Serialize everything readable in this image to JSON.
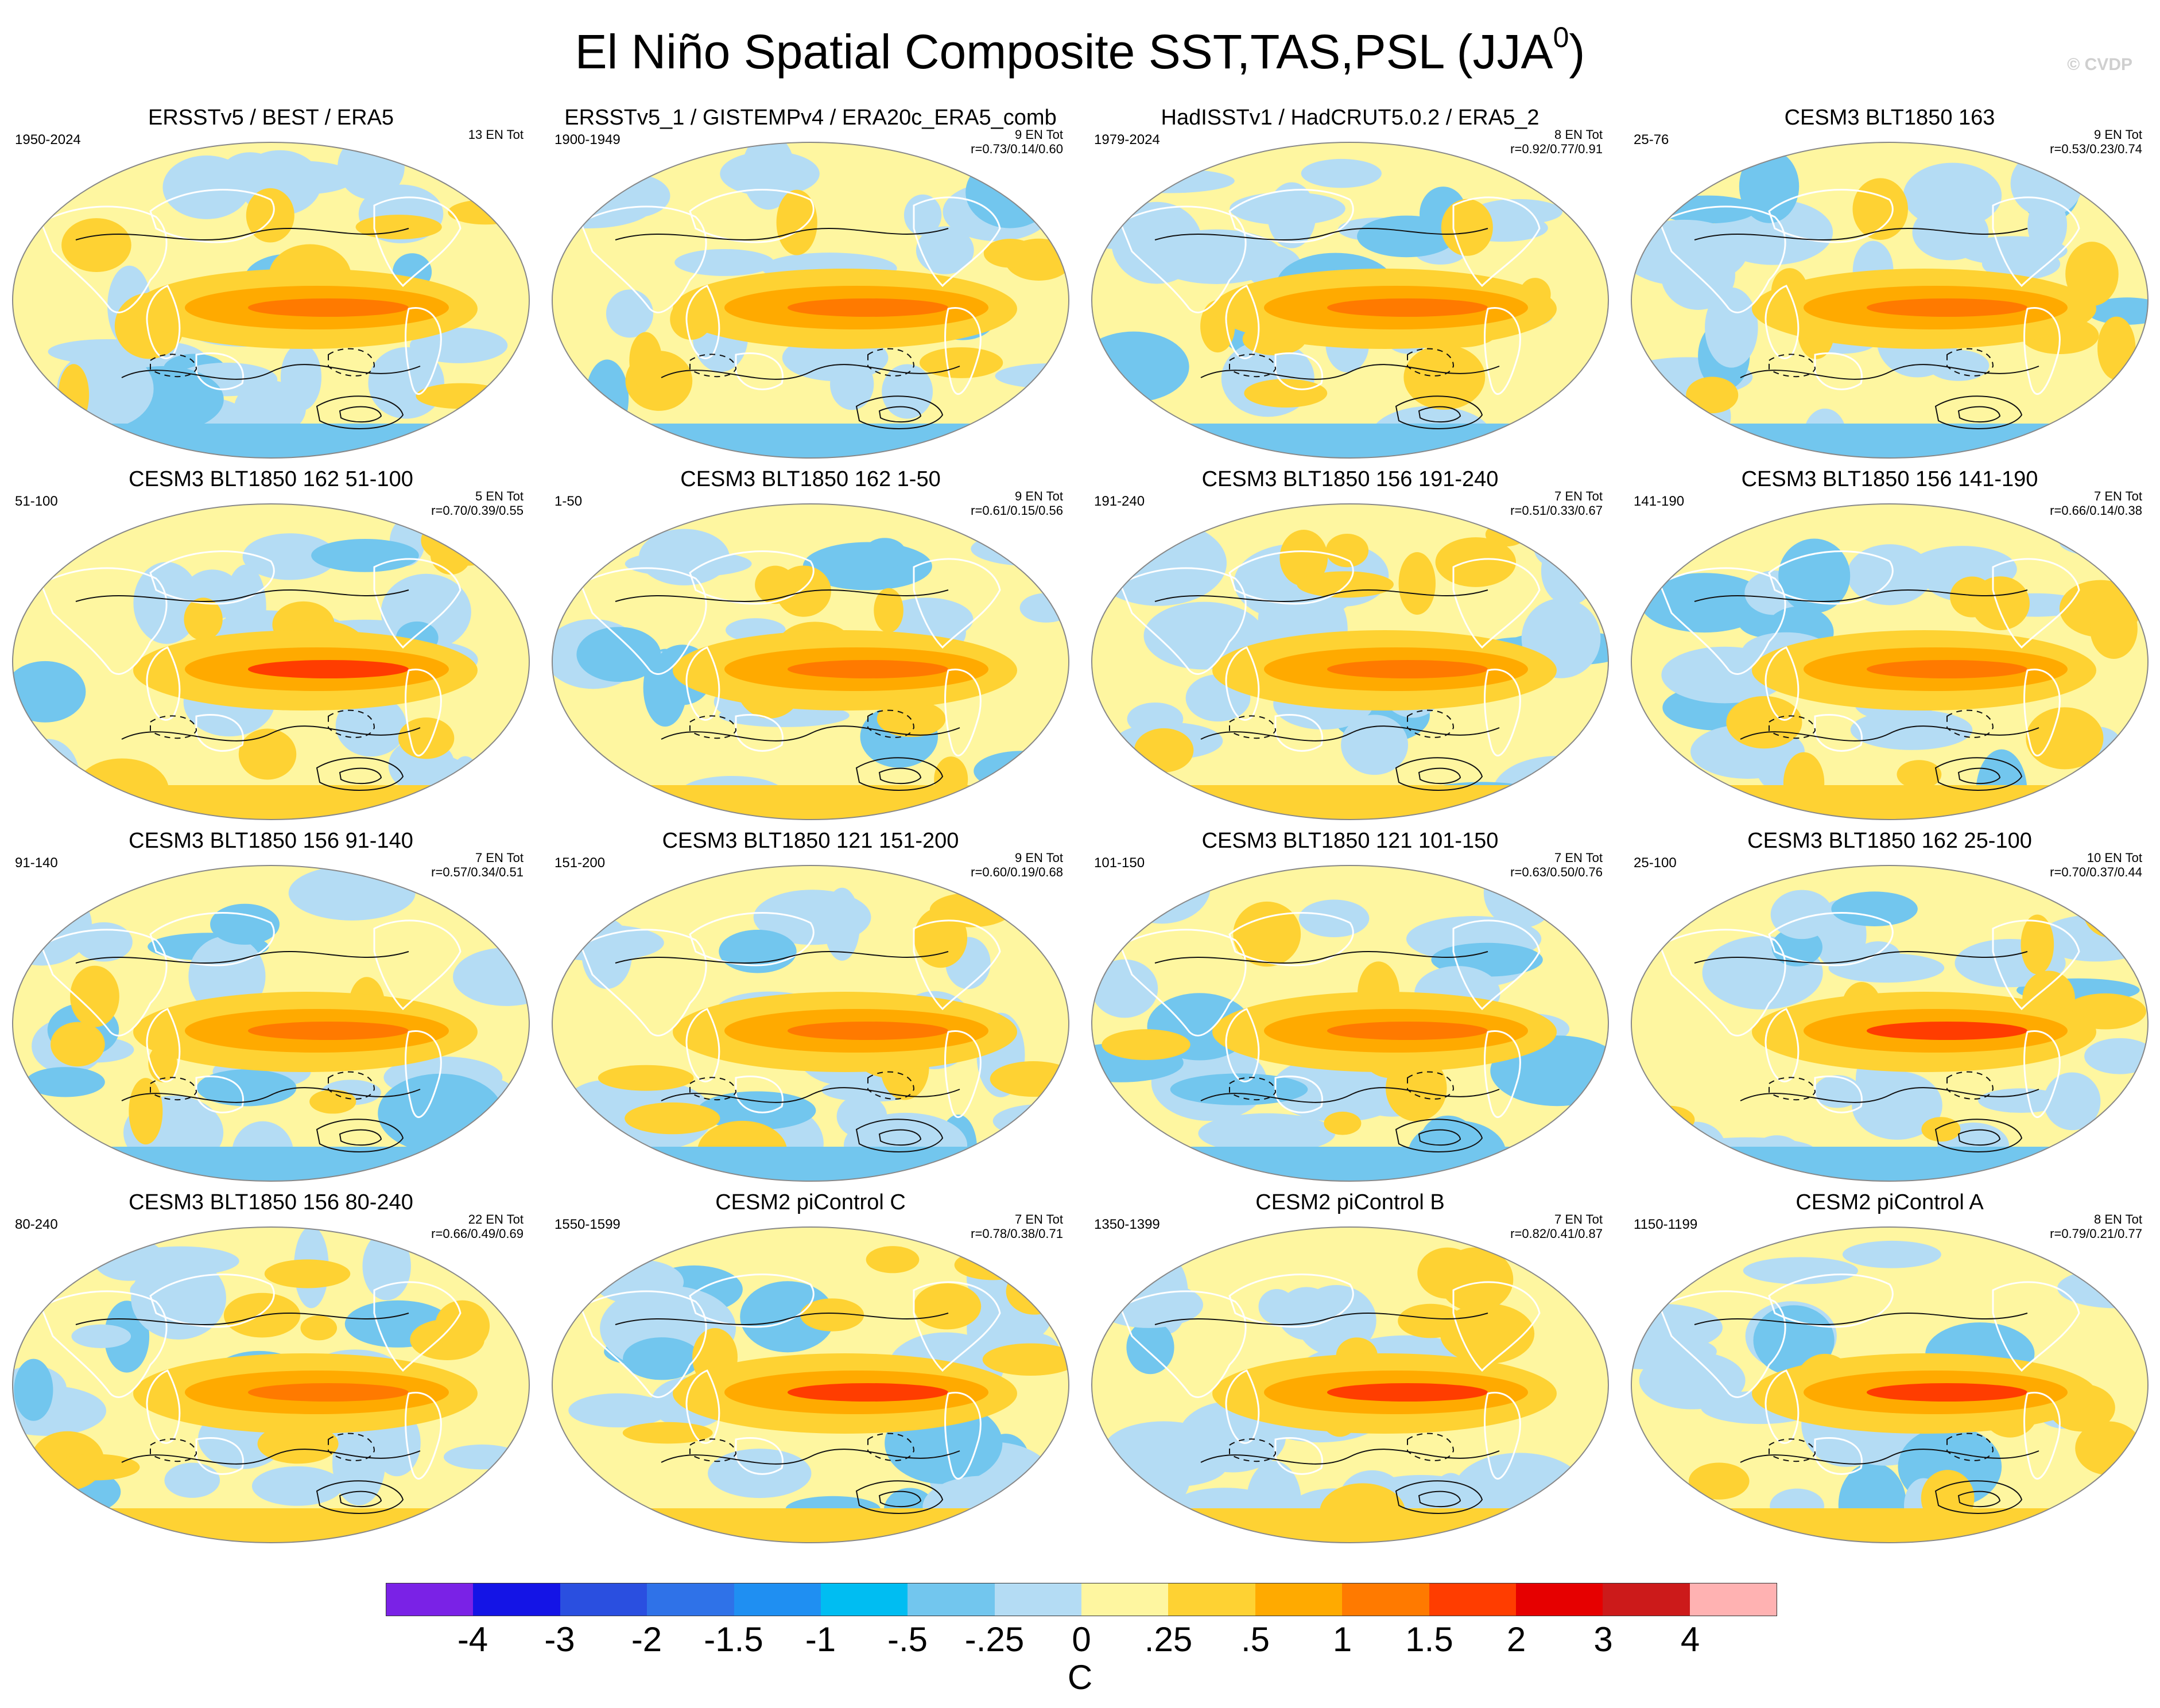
{
  "figure": {
    "title": "El Niño Spatial Composite SST,TAS,PSL (JJA",
    "title_sup": "0",
    "title_close": ")",
    "watermark": "© CVDP",
    "units": "C"
  },
  "colorbar": {
    "labels": [
      "-4",
      "-3",
      "-2",
      "-1.5",
      "-1",
      "-.5",
      "-.25",
      "0",
      ".25",
      ".5",
      "1",
      "1.5",
      "2",
      "3",
      "4"
    ],
    "colors": [
      "#7a22e6",
      "#1414e6",
      "#2a4fe0",
      "#2f72e8",
      "#1f8ff2",
      "#00bdf2",
      "#72c6ee",
      "#b4dcf4",
      "#fef6a0",
      "#fed233",
      "#ffaa00",
      "#ff7a00",
      "#ff3d00",
      "#e60000",
      "#cc1a1a",
      "#ffb2b2"
    ]
  },
  "chart_data": {
    "type": "heatmap",
    "description_fields": [
      "title",
      "period",
      "count",
      "r"
    ],
    "panels": [
      {
        "title": "ERSSTv5 / BEST / ERA5",
        "period": "1950-2024",
        "count": "13 EN Tot",
        "r": ""
      },
      {
        "title": "ERSSTv5_1 / GISTEMPv4 / ERA20c_ERA5_comb",
        "period": "1900-1949",
        "count": "9 EN Tot",
        "r": "r=0.73/0.14/0.60"
      },
      {
        "title": "HadISSTv1 / HadCRUT5.0.2 / ERA5_2",
        "period": "1979-2024",
        "count": "8 EN Tot",
        "r": "r=0.92/0.77/0.91"
      },
      {
        "title": "CESM3 BLT1850 163",
        "period": "25-76",
        "count": "9 EN Tot",
        "r": "r=0.53/0.23/0.74"
      },
      {
        "title": "CESM3 BLT1850 162 51-100",
        "period": "51-100",
        "count": "5 EN Tot",
        "r": "r=0.70/0.39/0.55"
      },
      {
        "title": "CESM3 BLT1850 162 1-50",
        "period": "1-50",
        "count": "9 EN Tot",
        "r": "r=0.61/0.15/0.56"
      },
      {
        "title": "CESM3 BLT1850 156 191-240",
        "period": "191-240",
        "count": "7 EN Tot",
        "r": "r=0.51/0.33/0.67"
      },
      {
        "title": "CESM3 BLT1850 156 141-190",
        "period": "141-190",
        "count": "7 EN Tot",
        "r": "r=0.66/0.14/0.38"
      },
      {
        "title": "CESM3 BLT1850 156 91-140",
        "period": "91-140",
        "count": "7 EN Tot",
        "r": "r=0.57/0.34/0.51"
      },
      {
        "title": "CESM3 BLT1850 121 151-200",
        "period": "151-200",
        "count": "9 EN Tot",
        "r": "r=0.60/0.19/0.68"
      },
      {
        "title": "CESM3 BLT1850 121 101-150",
        "period": "101-150",
        "count": "7 EN Tot",
        "r": "r=0.63/0.50/0.76"
      },
      {
        "title": "CESM3 BLT1850 162 25-100",
        "period": "25-100",
        "count": "10 EN Tot",
        "r": "r=0.70/0.37/0.44"
      },
      {
        "title": "CESM3 BLT1850 156 80-240",
        "period": "80-240",
        "count": "22 EN Tot",
        "r": "r=0.66/0.49/0.69"
      },
      {
        "title": "CESM2 piControl C",
        "period": "1550-1599",
        "count": "7 EN Tot",
        "r": "r=0.78/0.38/0.71"
      },
      {
        "title": "CESM2 piControl B",
        "period": "1350-1399",
        "count": "7 EN Tot",
        "r": "r=0.82/0.41/0.87"
      },
      {
        "title": "CESM2 piControl A",
        "period": "1150-1199",
        "count": "8 EN Tot",
        "r": "r=0.79/0.21/0.77"
      }
    ]
  }
}
